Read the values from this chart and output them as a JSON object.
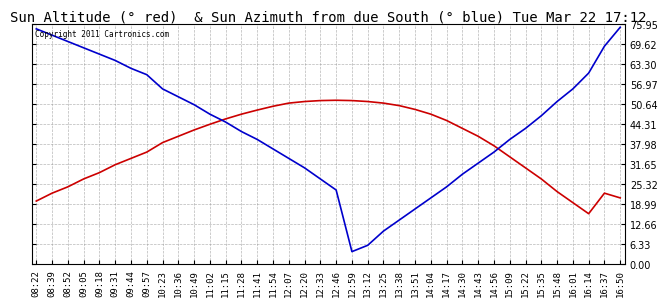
{
  "title": "Sun Altitude (° red)  & Sun Azimuth from due South (° blue) Tue Mar 22 17:12",
  "copyright_text": "Copyright 2011 Cartronics.com",
  "y_min": 0.0,
  "y_max": 75.95,
  "y_ticks": [
    0.0,
    6.33,
    12.66,
    18.99,
    25.32,
    31.65,
    37.98,
    44.31,
    50.64,
    56.97,
    63.3,
    69.62,
    75.95
  ],
  "x_labels": [
    "08:22",
    "08:39",
    "08:52",
    "09:05",
    "09:18",
    "09:31",
    "09:44",
    "09:57",
    "10:23",
    "10:36",
    "10:49",
    "11:02",
    "11:15",
    "11:28",
    "11:41",
    "11:54",
    "12:07",
    "12:20",
    "12:33",
    "12:46",
    "12:59",
    "13:12",
    "13:25",
    "13:38",
    "13:51",
    "14:04",
    "14:17",
    "14:30",
    "14:43",
    "14:56",
    "15:09",
    "15:22",
    "15:35",
    "15:48",
    "16:01",
    "16:14",
    "16:37",
    "16:50"
  ],
  "red_values": [
    20.0,
    22.5,
    24.5,
    27.0,
    29.0,
    31.5,
    33.5,
    35.5,
    38.5,
    40.5,
    42.5,
    44.3,
    46.0,
    47.5,
    48.8,
    50.0,
    51.0,
    51.5,
    51.8,
    51.9,
    51.8,
    51.5,
    51.0,
    50.2,
    49.0,
    47.5,
    45.5,
    43.0,
    40.5,
    37.5,
    34.0,
    30.5,
    27.0,
    23.0,
    19.5,
    16.0,
    22.5,
    21.0
  ],
  "blue_values": [
    74.5,
    72.5,
    70.5,
    68.5,
    66.5,
    64.5,
    62.0,
    60.0,
    55.5,
    53.0,
    50.5,
    47.5,
    45.0,
    42.0,
    39.5,
    36.5,
    33.5,
    30.5,
    27.0,
    23.5,
    4.0,
    6.0,
    10.5,
    14.0,
    17.5,
    21.0,
    24.5,
    28.5,
    32.0,
    35.5,
    39.5,
    43.0,
    47.0,
    51.5,
    55.5,
    60.5,
    69.0,
    75.0
  ],
  "red_color": "#cc0000",
  "blue_color": "#0000cc",
  "bg_color": "#ffffff",
  "grid_color": "#999999",
  "title_fontsize": 10,
  "tick_fontsize": 6.5,
  "ytick_fontsize": 7
}
